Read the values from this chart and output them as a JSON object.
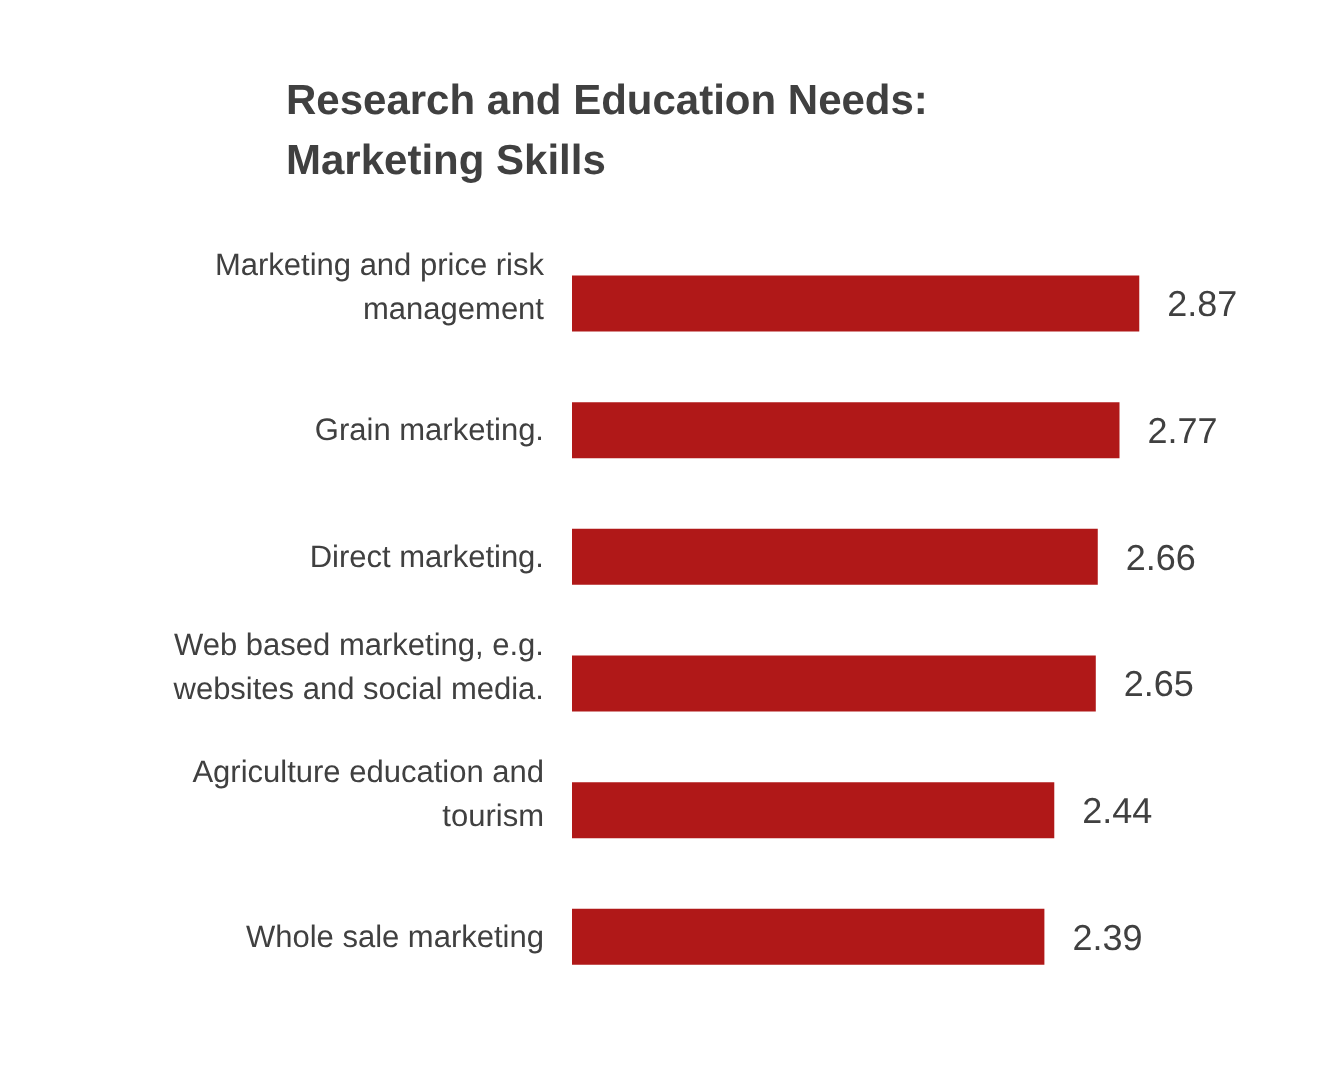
{
  "chart_data": {
    "type": "bar",
    "orientation": "horizontal",
    "title": "Research and Education Needs:\nMarketing Skills",
    "categories": [
      "Marketing and price risk management",
      "Grain marketing.",
      "Direct marketing.",
      "Web based marketing, e.g. websites and social media.",
      "Agriculture education and tourism",
      "Whole sale marketing"
    ],
    "values": [
      2.87,
      2.77,
      2.66,
      2.65,
      2.44,
      2.39
    ],
    "color": "#b01818",
    "data_labels": true,
    "grid": false,
    "legend": false
  }
}
